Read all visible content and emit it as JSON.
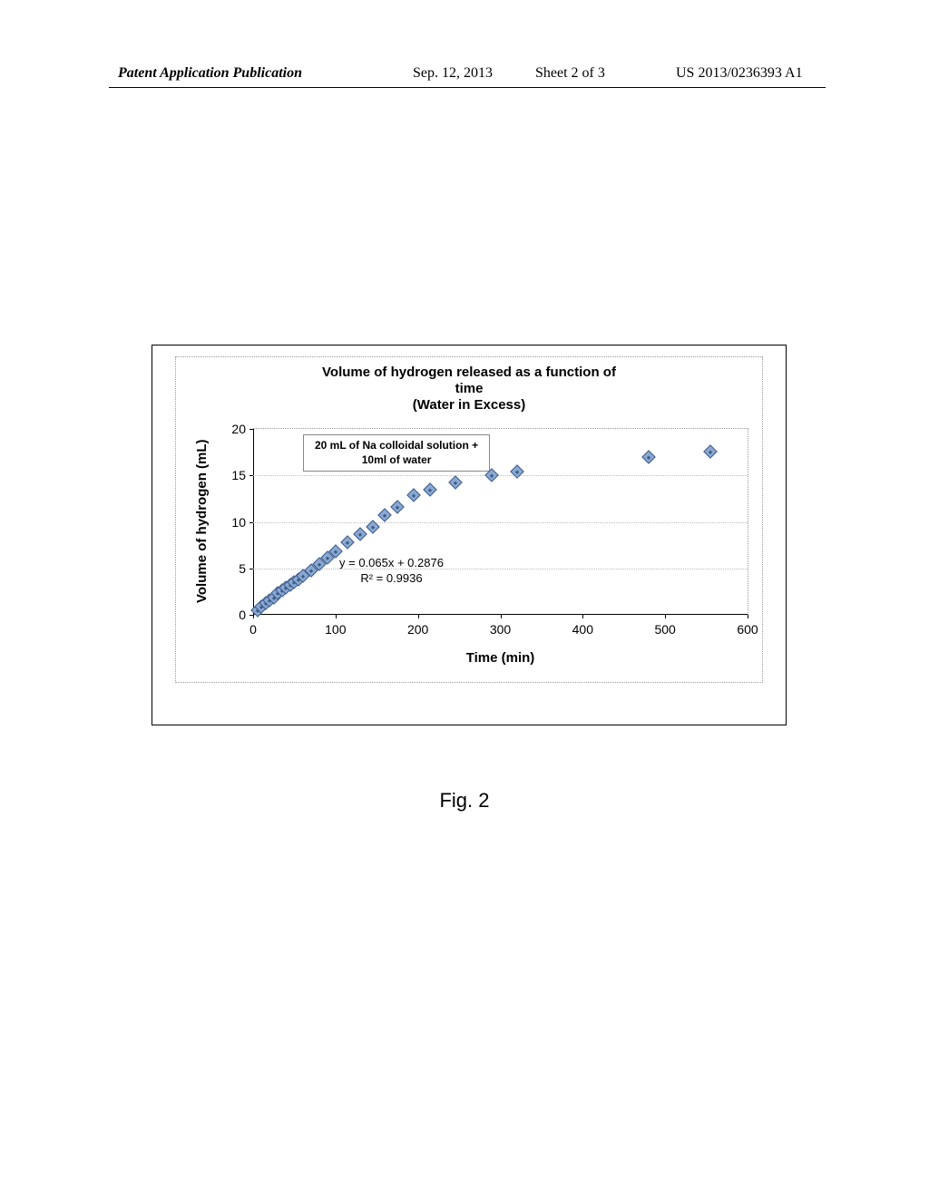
{
  "header": {
    "left": "Patent Application Publication",
    "date": "Sep. 12, 2013",
    "sheet": "Sheet 2 of 3",
    "pubno": "US 2013/0236393 A1"
  },
  "figure_caption": "Fig. 2",
  "chart": {
    "type": "scatter",
    "title_line1": "Volume of hydrogen released as a function of",
    "title_line2": "time",
    "title_line3": "(Water in Excess)",
    "ylabel": "Volume of hydrogen (mL)",
    "xlabel": "Time (min)",
    "legend_line1": "20 mL of Na colloidal solution +",
    "legend_line2": "10ml of water",
    "equation_line1": "y = 0.065x + 0.2876",
    "equation_line2": "R² = 0.9936",
    "xlim": [
      0,
      600
    ],
    "ylim": [
      0,
      20
    ],
    "xticks": [
      0,
      100,
      200,
      300,
      400,
      500,
      600
    ],
    "yticks": [
      0,
      5,
      10,
      15,
      20
    ],
    "marker_border_color": "#3a5a8a",
    "marker_fill_color": "#8aa8d0",
    "grid_color": "#bbbbbb",
    "data": [
      {
        "x": 5,
        "y": 0.5
      },
      {
        "x": 10,
        "y": 0.9
      },
      {
        "x": 15,
        "y": 1.3
      },
      {
        "x": 20,
        "y": 1.6
      },
      {
        "x": 25,
        "y": 1.9
      },
      {
        "x": 30,
        "y": 2.3
      },
      {
        "x": 35,
        "y": 2.6
      },
      {
        "x": 40,
        "y": 2.9
      },
      {
        "x": 45,
        "y": 3.2
      },
      {
        "x": 50,
        "y": 3.5
      },
      {
        "x": 55,
        "y": 3.8
      },
      {
        "x": 60,
        "y": 4.2
      },
      {
        "x": 70,
        "y": 4.8
      },
      {
        "x": 80,
        "y": 5.5
      },
      {
        "x": 90,
        "y": 6.1
      },
      {
        "x": 100,
        "y": 6.8
      },
      {
        "x": 115,
        "y": 7.8
      },
      {
        "x": 130,
        "y": 8.7
      },
      {
        "x": 145,
        "y": 9.5
      },
      {
        "x": 160,
        "y": 10.7
      },
      {
        "x": 175,
        "y": 11.6
      },
      {
        "x": 195,
        "y": 12.9
      },
      {
        "x": 215,
        "y": 13.5
      },
      {
        "x": 245,
        "y": 14.2
      },
      {
        "x": 290,
        "y": 15.0
      },
      {
        "x": 320,
        "y": 15.4
      },
      {
        "x": 480,
        "y": 17.0
      },
      {
        "x": 555,
        "y": 17.6
      }
    ]
  }
}
